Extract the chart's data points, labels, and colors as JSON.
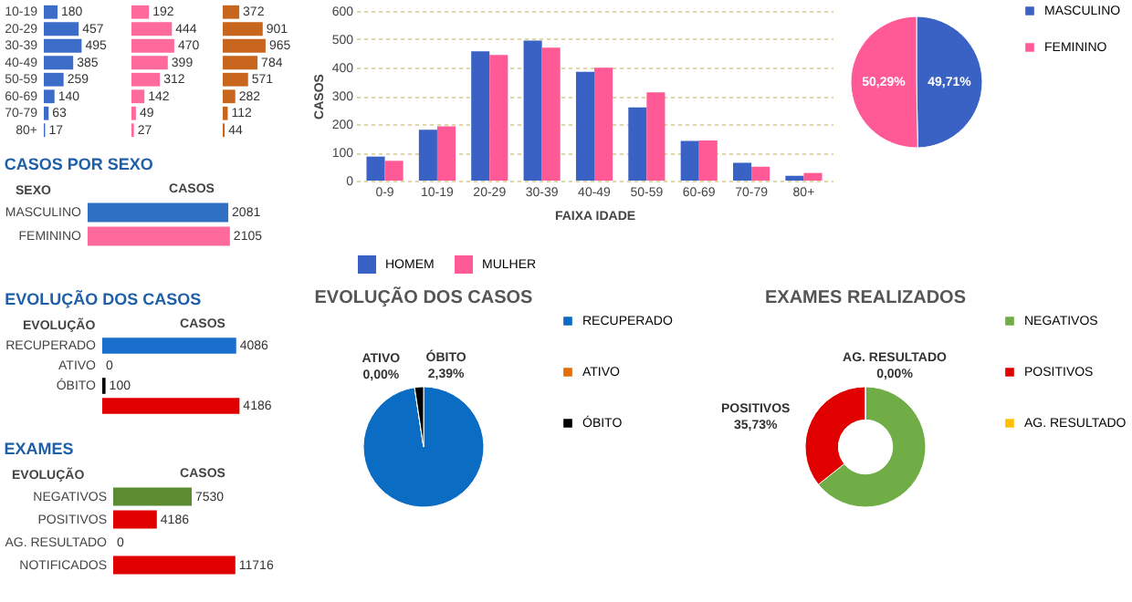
{
  "chart_data": [
    {
      "type": "bar",
      "orientation": "horizontal",
      "data_labels": true,
      "categories": [
        "10-19",
        "20-29",
        "30-39",
        "40-49",
        "50-59",
        "60-69",
        "70-79",
        "80+"
      ],
      "color": "#3a6cc8",
      "values": [
        180,
        457,
        495,
        385,
        259,
        140,
        63,
        17
      ]
    },
    {
      "type": "bar",
      "orientation": "horizontal",
      "data_labels": true,
      "categories": [
        null,
        null,
        null,
        null,
        null,
        null,
        null,
        null
      ],
      "color": "#ff6a9c",
      "values": [
        192,
        444,
        470,
        399,
        312,
        142,
        49,
        27
      ]
    },
    {
      "type": "bar",
      "orientation": "horizontal",
      "data_labels": true,
      "categories": [
        null,
        null,
        null,
        null,
        null,
        null,
        null,
        null
      ],
      "color": "#c8661e",
      "values": [
        372,
        901,
        965,
        784,
        571,
        282,
        112,
        44
      ]
    },
    {
      "type": "bar",
      "orientation": "horizontal",
      "data_labels": true,
      "title": "CASOS POR SEXO",
      "ylabel": "SEXO",
      "xlabel": "CASOS",
      "categories": [
        "MASCULINO",
        "FEMININO"
      ],
      "values": [
        2081,
        2105
      ],
      "colors": [
        "#2f6fc4",
        "#ff6a9c"
      ]
    },
    {
      "type": "bar",
      "categories": [
        "0-9",
        "10-19",
        "20-29",
        "30-39",
        "40-49",
        "50-59",
        "60-69",
        "70-79",
        "80+"
      ],
      "xlabel": "FAIXA IDADE",
      "ylabel": "CASOS",
      "ylim": [
        0,
        600
      ],
      "yticks": [
        0,
        100,
        200,
        300,
        400,
        500,
        600
      ],
      "grid": "y",
      "legend": "bottom",
      "series": [
        {
          "name": "HOMEM",
          "color": "#3a62c4",
          "values": [
            85,
            180,
            457,
            495,
            385,
            259,
            140,
            63,
            17
          ]
        },
        {
          "name": "MULHER",
          "color": "#ff5a96",
          "values": [
            70,
            192,
            444,
            470,
            399,
            312,
            142,
            49,
            27
          ]
        }
      ]
    },
    {
      "type": "pie",
      "categories": [
        "MASCULINO",
        "FEMININO"
      ],
      "values": [
        49.71,
        50.29
      ],
      "colors": [
        "#3a62c4",
        "#ff5a96"
      ],
      "value_labels": [
        "49,71%",
        "50,29%"
      ],
      "legend": "right"
    },
    {
      "type": "bar",
      "orientation": "horizontal",
      "data_labels": true,
      "title": "EVOLUÇÃO DOS CASOS",
      "ylabel": "EVOLUÇÃO",
      "xlabel": "CASOS",
      "categories": [
        "RECUPERADO",
        "ATIVO",
        "ÓBITO",
        null
      ],
      "values": [
        4086,
        0,
        100,
        4186
      ],
      "colors": [
        "#1a6fcc",
        "#000000",
        "#000000",
        "#e00000"
      ]
    },
    {
      "type": "bar",
      "orientation": "horizontal",
      "data_labels": true,
      "title": "EXAMES",
      "ylabel": "EVOLUÇÃO",
      "xlabel": "CASOS",
      "categories": [
        "NEGATIVOS",
        "POSITIVOS",
        "AG. RESULTADO",
        "NOTIFICADOS"
      ],
      "values": [
        7530,
        4186,
        0,
        11716
      ],
      "colors": [
        "#5b8c32",
        "#e00000",
        "#000000",
        "#e00000"
      ]
    },
    {
      "type": "pie",
      "title": "EVOLUÇÃO DOS CASOS",
      "categories": [
        "RECUPERADO",
        "ATIVO",
        "ÓBITO"
      ],
      "values": [
        97.61,
        0,
        2.39
      ],
      "colors": [
        "#0b6cc4",
        "#e46c0a",
        "#000000"
      ],
      "value_labels": [
        null,
        "0,00%",
        "2,39%"
      ],
      "legend": "right"
    },
    {
      "type": "donut",
      "title": "EXAMES REALIZADOS",
      "categories": [
        "NEGATIVOS",
        "POSITIVOS",
        "AG. RESULTADO"
      ],
      "values": [
        64.27,
        35.73,
        0
      ],
      "colors": [
        "#70ad47",
        "#e00000",
        "#ffc000"
      ],
      "value_labels": [
        null,
        "35,73%",
        "0,00%"
      ],
      "legend": "right"
    }
  ]
}
